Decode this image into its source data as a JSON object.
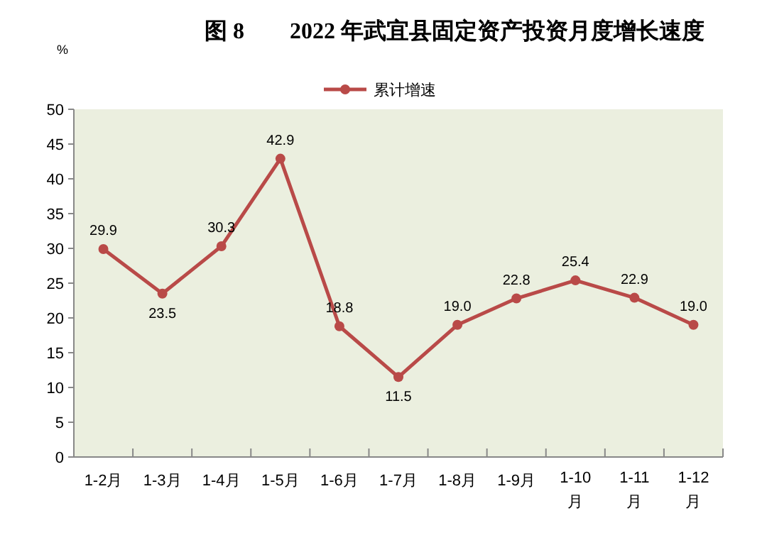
{
  "chart_data": {
    "type": "line",
    "title": "图 8　　2022 年武宜县固定资产投资月度增长速度",
    "ylabel": "%",
    "categories": [
      "1-2月",
      "1-3月",
      "1-4月",
      "1-5月",
      "1-6月",
      "1-7月",
      "1-8月",
      "1-9月",
      "1-10月",
      "1-11月",
      "1-12月"
    ],
    "series": [
      {
        "name": "累计增速",
        "color": "#b94a48",
        "values": [
          29.9,
          23.5,
          30.3,
          42.9,
          18.8,
          11.5,
          19.0,
          22.8,
          25.4,
          22.9,
          19.0
        ],
        "value_labels": [
          "29.9",
          "23.5",
          "30.3",
          "42.9",
          "18.8",
          "11.5",
          "19.0",
          "22.8",
          "25.4",
          "22.9",
          "19.0"
        ]
      }
    ],
    "ylim": [
      0,
      50
    ],
    "yticks": [
      0,
      5,
      10,
      15,
      20,
      25,
      30,
      35,
      40,
      45,
      50
    ],
    "legend": "top",
    "marker": "circle",
    "line_style": "solid"
  }
}
